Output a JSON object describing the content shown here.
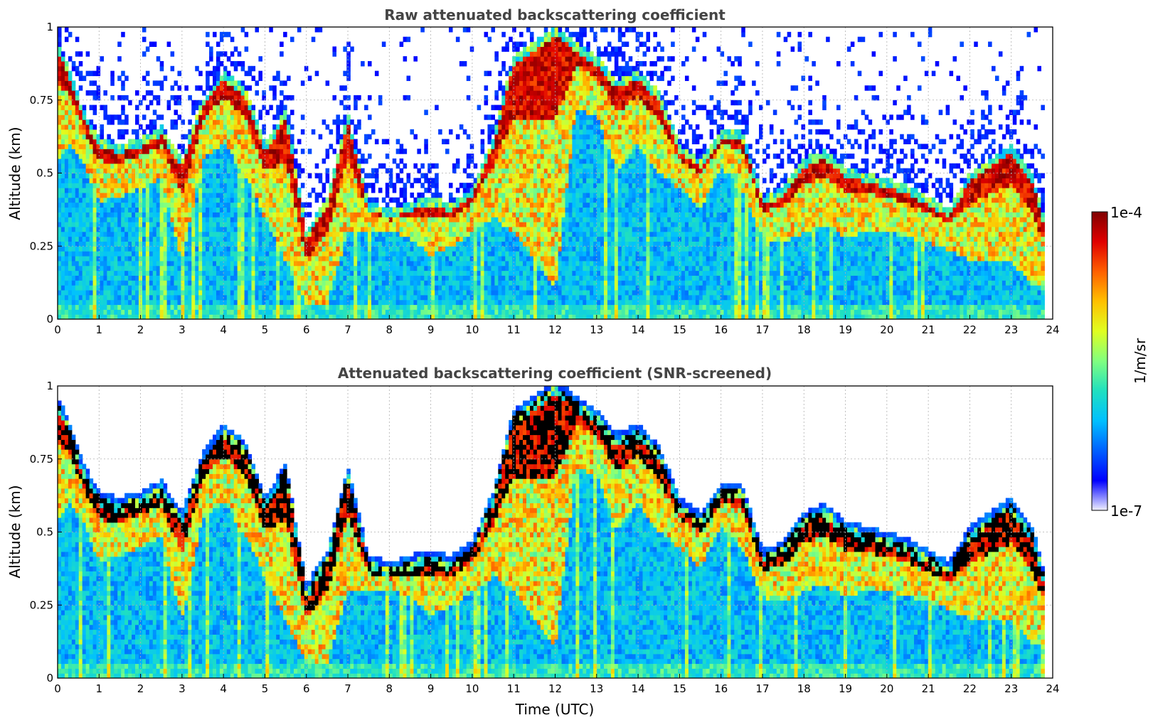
{
  "chart_data": [
    {
      "type": "heatmap",
      "id": "raw",
      "title": "Raw attenuated backscattering coefficient",
      "xlabel": "",
      "ylabel": "Altitude (km)",
      "xlim": [
        0,
        24
      ],
      "ylim": [
        0,
        1
      ],
      "x_ticks": [
        "0",
        "1",
        "2",
        "3",
        "4",
        "5",
        "6",
        "7",
        "8",
        "9",
        "10",
        "11",
        "12",
        "13",
        "14",
        "15",
        "16",
        "17",
        "18",
        "19",
        "20",
        "21",
        "22",
        "23",
        "24"
      ],
      "y_ticks": [
        "0",
        "0.25",
        "0.5",
        "0.75",
        "1"
      ],
      "grid": true,
      "data_end_hour": 23.8,
      "cloud_layer": {
        "hours": [
          0,
          0.3,
          0.6,
          1.0,
          1.5,
          2.0,
          2.5,
          3.0,
          3.5,
          4.0,
          4.5,
          5.0,
          5.5,
          6.0,
          6.5,
          7.0,
          7.5,
          8.0,
          8.5,
          9.0,
          9.5,
          10.0,
          10.5,
          11.0,
          11.5,
          12.0,
          12.5,
          13.0,
          13.5,
          14.0,
          14.5,
          15.0,
          15.5,
          16.0,
          16.5,
          17.0,
          17.5,
          18.0,
          18.5,
          19.0,
          19.5,
          20.0,
          20.5,
          21.0,
          21.5,
          22.0,
          22.5,
          23.0,
          23.5,
          23.8
        ],
        "base_km": [
          0.55,
          0.6,
          0.55,
          0.4,
          0.42,
          0.45,
          0.48,
          0.2,
          0.55,
          0.6,
          0.5,
          0.35,
          0.2,
          0.05,
          0.05,
          0.3,
          0.3,
          0.3,
          0.28,
          0.22,
          0.25,
          0.3,
          0.35,
          0.3,
          0.2,
          0.1,
          0.72,
          0.7,
          0.5,
          0.6,
          0.5,
          0.45,
          0.38,
          0.52,
          0.45,
          0.28,
          0.26,
          0.3,
          0.32,
          0.28,
          0.3,
          0.3,
          0.28,
          0.26,
          0.24,
          0.2,
          0.2,
          0.2,
          0.12,
          0.1
        ],
        "top_km": [
          0.95,
          0.85,
          0.72,
          0.62,
          0.6,
          0.62,
          0.66,
          0.55,
          0.75,
          0.85,
          0.8,
          0.6,
          0.72,
          0.3,
          0.42,
          0.7,
          0.4,
          0.38,
          0.4,
          0.42,
          0.4,
          0.45,
          0.62,
          0.9,
          0.95,
          1.0,
          0.95,
          0.9,
          0.82,
          0.85,
          0.78,
          0.6,
          0.55,
          0.65,
          0.65,
          0.42,
          0.45,
          0.55,
          0.58,
          0.52,
          0.5,
          0.48,
          0.46,
          0.42,
          0.38,
          0.5,
          0.55,
          0.6,
          0.5,
          0.35
        ]
      }
    },
    {
      "type": "heatmap",
      "id": "screened",
      "title": "Attenuated backscattering coefficient (SNR-screened)",
      "xlabel": "Time (UTC)",
      "ylabel": "Altitude (km)",
      "xlim": [
        0,
        24
      ],
      "ylim": [
        0,
        1
      ],
      "x_ticks": [
        "0",
        "1",
        "2",
        "3",
        "4",
        "5",
        "6",
        "7",
        "8",
        "9",
        "10",
        "11",
        "12",
        "13",
        "14",
        "15",
        "16",
        "17",
        "18",
        "19",
        "20",
        "21",
        "22",
        "23",
        "24"
      ],
      "y_ticks": [
        "0",
        "0.25",
        "0.5",
        "0.75",
        "1"
      ],
      "grid": true,
      "data_end_hour": 23.8,
      "saturated_color": "#000000"
    }
  ],
  "colorbar": {
    "label": "1/m/sr",
    "max_label": "1e-4",
    "min_label": "1e-7",
    "colors": [
      "#f0f0ff",
      "#0000ff",
      "#0060ff",
      "#00c0ff",
      "#20e0c0",
      "#80ff80",
      "#e0ff20",
      "#ffc000",
      "#ff6000",
      "#e00000",
      "#800000"
    ]
  },
  "colors": {
    "title": "#444444",
    "grid": "#b0b0b0",
    "background": "#ffffff"
  }
}
